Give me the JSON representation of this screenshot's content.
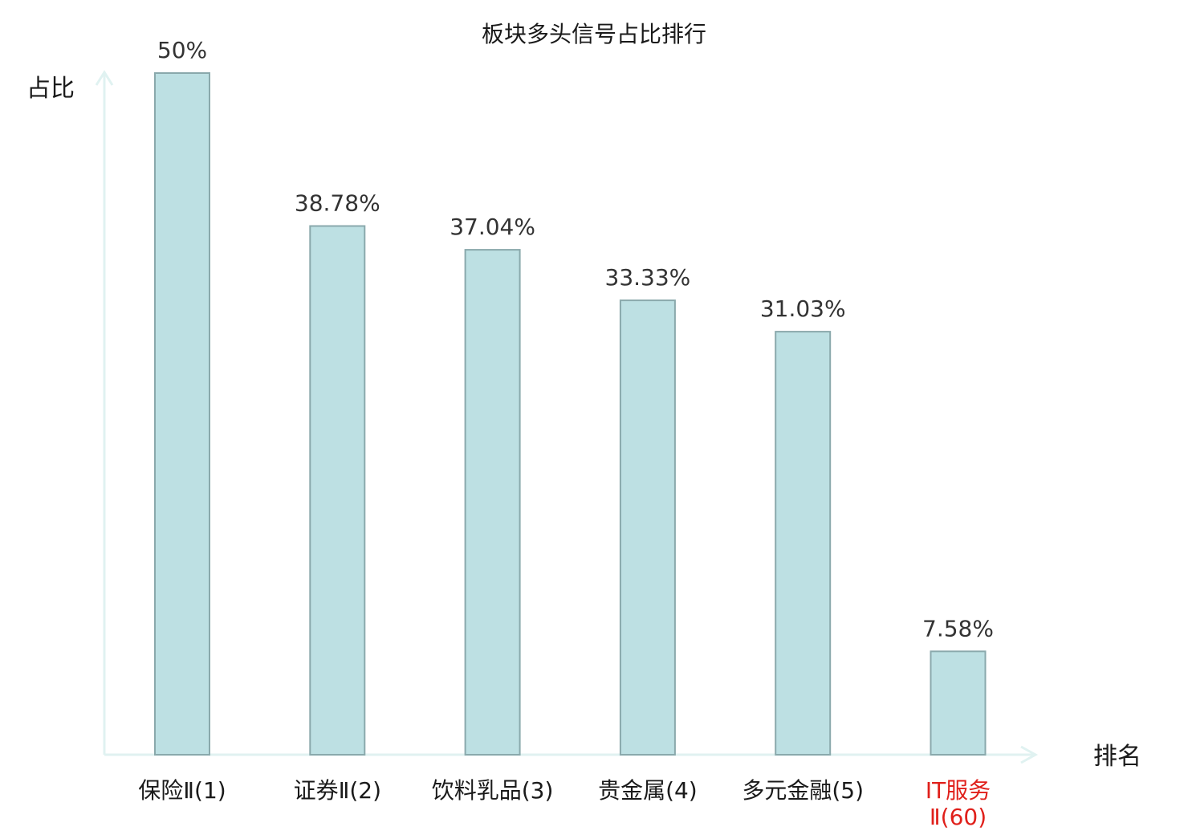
{
  "chart_data": {
    "type": "bar",
    "title": "板块多头信号占比排行",
    "ylabel": "占比",
    "xlabel": "排名",
    "categories": [
      "保险Ⅱ(1)",
      "证券Ⅱ(2)",
      "饮料乳品(3)",
      "贵金属(4)",
      "多元金融(5)",
      "IT服务Ⅱ(60)"
    ],
    "values": [
      50,
      38.78,
      37.04,
      33.33,
      31.03,
      7.58
    ],
    "value_labels": [
      "50%",
      "38.78%",
      "37.04%",
      "33.33%",
      "31.03%",
      "7.58%"
    ],
    "ylim": [
      0,
      50
    ],
    "grid": false,
    "legend": "none",
    "highlight_category": "IT服务Ⅱ(60)",
    "colors": {
      "bar_fill": "#bde0e3",
      "bar_stroke": "#8aa9ac",
      "axis": "#e0f2f1",
      "highlight_text": "#e0201b",
      "text": "#1a1a1a",
      "value_text": "#333333"
    }
  }
}
